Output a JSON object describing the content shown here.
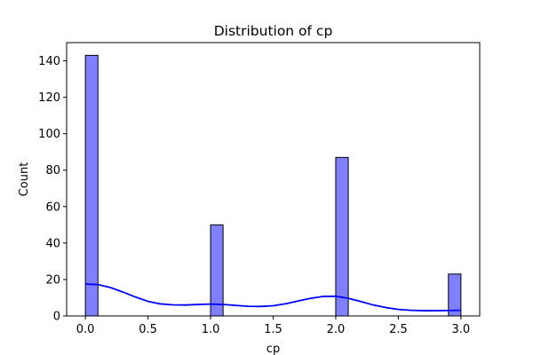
{
  "chart_data": {
    "type": "bar",
    "title": "Distribution of cp",
    "xlabel": "cp",
    "ylabel": "Count",
    "xlim": [
      -0.15,
      3.15
    ],
    "ylim": [
      0,
      150
    ],
    "xticks": [
      0.0,
      0.5,
      1.0,
      1.5,
      2.0,
      2.5,
      3.0
    ],
    "xtick_labels": [
      "0.0",
      "0.5",
      "1.0",
      "1.5",
      "2.0",
      "2.5",
      "3.0"
    ],
    "yticks": [
      0,
      20,
      40,
      60,
      80,
      100,
      120,
      140
    ],
    "ytick_labels": [
      "0",
      "20",
      "40",
      "60",
      "80",
      "100",
      "120",
      "140"
    ],
    "bins": [
      {
        "x0": 0.0,
        "x1": 0.1,
        "count": 143
      },
      {
        "x0": 1.0,
        "x1": 1.1,
        "count": 50
      },
      {
        "x0": 2.0,
        "x1": 2.1,
        "count": 87
      },
      {
        "x0": 2.9,
        "x1": 3.0,
        "count": 23
      }
    ],
    "kde": {
      "x": [
        0.0,
        0.1,
        0.2,
        0.3,
        0.4,
        0.5,
        0.6,
        0.7,
        0.8,
        0.9,
        1.0,
        1.1,
        1.2,
        1.3,
        1.4,
        1.5,
        1.6,
        1.7,
        1.8,
        1.9,
        2.0,
        2.1,
        2.2,
        2.3,
        2.4,
        2.5,
        2.6,
        2.7,
        2.8,
        2.9,
        3.0
      ],
      "y": [
        17.5,
        17.2,
        15.6,
        13.1,
        10.4,
        8.0,
        6.6,
        6.1,
        6.0,
        6.3,
        6.5,
        6.3,
        5.8,
        5.3,
        5.2,
        5.6,
        6.7,
        8.2,
        9.7,
        10.7,
        10.8,
        9.7,
        7.9,
        6.0,
        4.6,
        3.6,
        3.1,
        2.9,
        2.9,
        3.0,
        3.1
      ]
    },
    "colors": {
      "bar_fill": "#8080ff",
      "bar_edge": "#000000",
      "kde_line": "#0000ff"
    },
    "grid": false,
    "legend": "none"
  }
}
